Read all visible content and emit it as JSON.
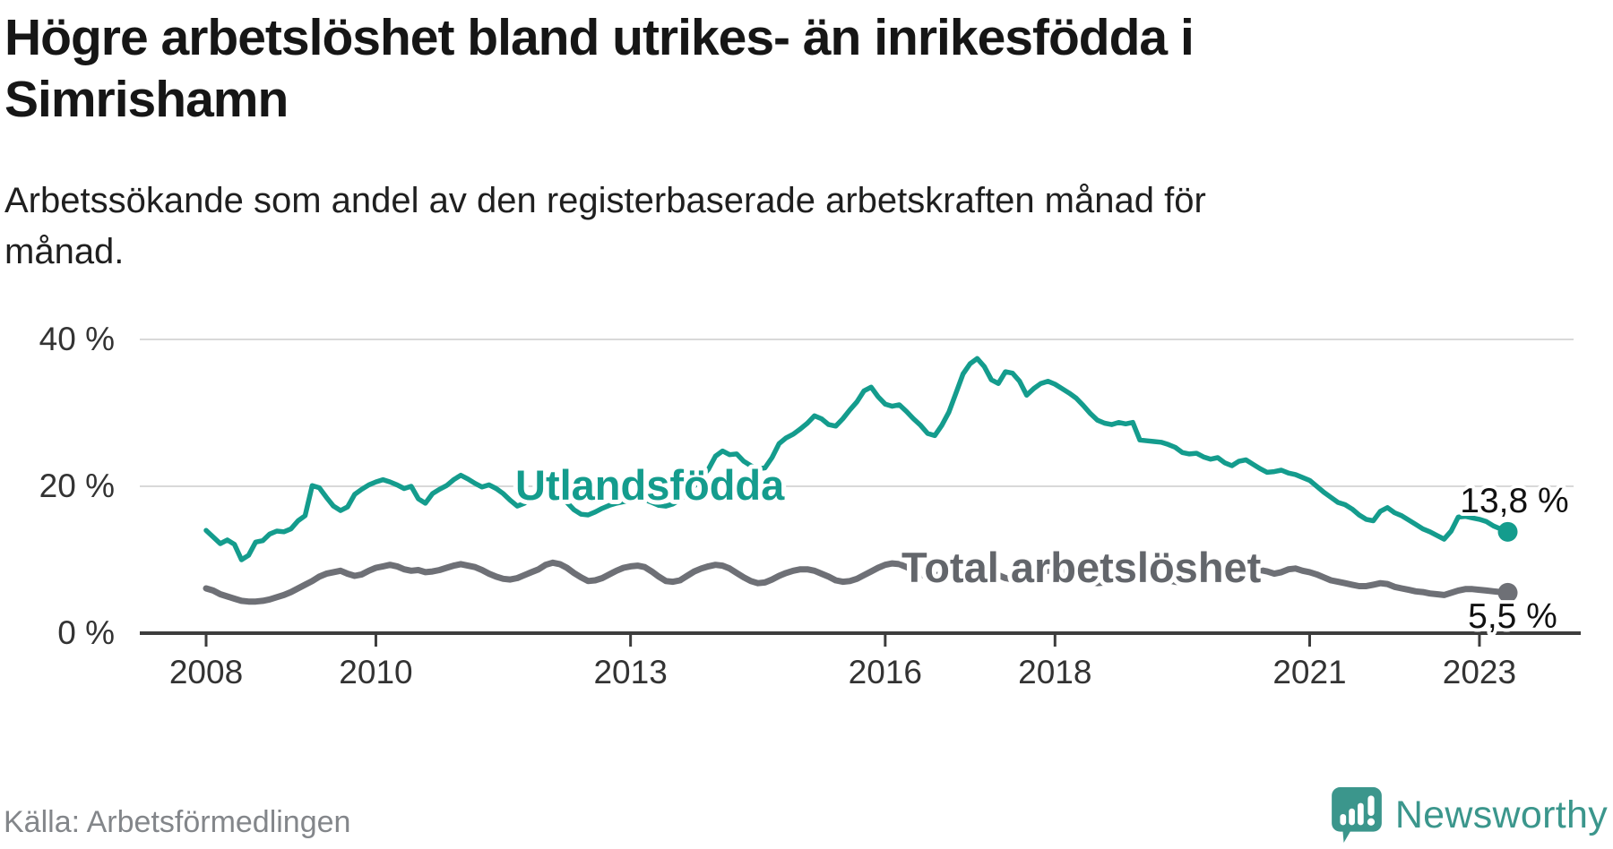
{
  "header": {
    "title_lines": [
      "Högre arbetslöshet bland utrikes- än inrikesfödda i",
      "Simrishamn"
    ],
    "subtitle_lines": [
      "Arbetssökande som andel av den registerbaserade arbetskraften månad för",
      "månad."
    ]
  },
  "footer": {
    "source": "Källa: Arbetsförmedlingen",
    "brand": "Newsworthy",
    "brand_color": "#3b968c"
  },
  "chart_data": {
    "type": "line",
    "title": "Högre arbetslöshet bland utrikes- än inrikesfödda i Simrishamn",
    "subtitle": "Arbetssökande som andel av den registerbaserade arbetskraften månad för månad.",
    "unit": "%",
    "frequency": "monthly",
    "start_month": "2008-01",
    "end_month": "2023-05",
    "ylim": [
      0,
      43
    ],
    "grid": "horizontal",
    "legend_position": "inline-labels",
    "y_ticks": [
      {
        "value": 0,
        "label": "0 %"
      },
      {
        "value": 20,
        "label": "20 %"
      },
      {
        "value": 40,
        "label": "40 %"
      }
    ],
    "x_ticks": [
      {
        "year": 2008,
        "label": "2008"
      },
      {
        "year": 2010,
        "label": "2010"
      },
      {
        "year": 2013,
        "label": "2013"
      },
      {
        "year": 2016,
        "label": "2016"
      },
      {
        "year": 2018,
        "label": "2018"
      },
      {
        "year": 2021,
        "label": "2021"
      },
      {
        "year": 2023,
        "label": "2023"
      }
    ],
    "colors": {
      "grid": "#d9d9d9",
      "axis": "#3d3d3d",
      "tick_text": "#333333",
      "end_label_text": "#111111"
    },
    "series": [
      {
        "name": "Utlandsfödda",
        "color": "#149c8d",
        "label_color": "#149c8d",
        "end_label": "13,8 %",
        "end_value": 13.8,
        "values": [
          14,
          13.1,
          12.2,
          12.7,
          12.1,
          10,
          10.6,
          12.4,
          12.6,
          13.5,
          13.9,
          13.8,
          14.2,
          15.3,
          16,
          20.1,
          19.8,
          18.5,
          17.3,
          16.7,
          17.2,
          18.9,
          19.6,
          20.2,
          20.6,
          20.9,
          20.6,
          20.2,
          19.7,
          20,
          18.3,
          17.7,
          19,
          19.6,
          20.1,
          20.9,
          21.5,
          21,
          20.4,
          19.9,
          20.2,
          19.7,
          19,
          18.1,
          17.3,
          17.7,
          18.4,
          19,
          19.4,
          19.7,
          18.8,
          17.8,
          16.8,
          16.2,
          16.1,
          16.5,
          17,
          17.4,
          17.7,
          17.9,
          18,
          18.4,
          18.2,
          17.8,
          17.4,
          17.3,
          17.6,
          18.2,
          19,
          20,
          21.2,
          22.3,
          24.1,
          24.8,
          24.3,
          24.4,
          23.4,
          22.8,
          22.4,
          22.5,
          23.9,
          25.8,
          26.6,
          27.1,
          27.8,
          28.6,
          29.6,
          29.2,
          28.4,
          28.2,
          29.2,
          30.4,
          31.5,
          33,
          33.5,
          32.2,
          31.2,
          30.9,
          31.1,
          30.2,
          29.2,
          28.3,
          27.2,
          26.9,
          28.3,
          30.1,
          32.7,
          35.3,
          36.7,
          37.4,
          36.3,
          34.5,
          34,
          35.6,
          35.4,
          34.3,
          32.4,
          33.3,
          34,
          34.3,
          33.9,
          33.3,
          32.7,
          32,
          31,
          29.9,
          29,
          28.6,
          28.4,
          28.7,
          28.5,
          28.7,
          26.3,
          26.2,
          26.1,
          26,
          25.7,
          25.3,
          24.6,
          24.4,
          24.5,
          24,
          23.7,
          23.9,
          23.2,
          22.8,
          23.4,
          23.6,
          23,
          22.4,
          21.9,
          22,
          22.2,
          21.8,
          21.6,
          21.2,
          20.8,
          20,
          19.2,
          18.5,
          17.8,
          17.5,
          16.9,
          16.1,
          15.5,
          15.3,
          16.6,
          17.1,
          16.4,
          16,
          15.4,
          14.8,
          14.2,
          13.8,
          13.3,
          12.8,
          13.9,
          15.8,
          15.9,
          15.7,
          15.5,
          15.2,
          14.6,
          14.2,
          13.8
        ]
      },
      {
        "name": "Total arbetslöshet",
        "color": "#6e7076",
        "label_color": "#63666b",
        "end_label": "5,5 %",
        "end_value": 5.5,
        "values": [
          6.1,
          5.8,
          5.3,
          5,
          4.7,
          4.4,
          4.3,
          4.3,
          4.4,
          4.6,
          4.9,
          5.2,
          5.6,
          6.1,
          6.6,
          7.1,
          7.7,
          8.1,
          8.3,
          8.5,
          8.1,
          7.8,
          8,
          8.5,
          8.9,
          9.1,
          9.3,
          9.1,
          8.7,
          8.5,
          8.6,
          8.3,
          8.4,
          8.6,
          8.9,
          9.2,
          9.4,
          9.2,
          9,
          8.6,
          8.1,
          7.7,
          7.4,
          7.3,
          7.5,
          7.9,
          8.3,
          8.7,
          9.3,
          9.6,
          9.4,
          8.9,
          8.2,
          7.6,
          7.1,
          7.2,
          7.5,
          8,
          8.5,
          8.9,
          9.1,
          9.2,
          9,
          8.4,
          7.7,
          7.1,
          7,
          7.2,
          7.8,
          8.4,
          8.8,
          9.1,
          9.3,
          9.2,
          8.8,
          8.2,
          7.6,
          7.1,
          6.8,
          6.9,
          7.3,
          7.8,
          8.2,
          8.5,
          8.7,
          8.7,
          8.5,
          8.1,
          7.7,
          7.2,
          7,
          7.1,
          7.4,
          7.9,
          8.4,
          8.9,
          9.3,
          9.5,
          9.4,
          9,
          8.5,
          8,
          7.7,
          7.8,
          8.1,
          8.5,
          8.8,
          9.1,
          9.2,
          9.1,
          8.8,
          8.4,
          7.9,
          7.5,
          7.3,
          7.4,
          7.7,
          8,
          8.3,
          8.5,
          8.6,
          8.5,
          8.2,
          7.8,
          7.4,
          7,
          6.8,
          6.9,
          7.2,
          7.5,
          7.8,
          8,
          8.1,
          8,
          7.8,
          7.5,
          7.2,
          7,
          6.9,
          7,
          7.2,
          7.4,
          7.7,
          7.9,
          8,
          8.2,
          8.6,
          9,
          8.9,
          8.6,
          8.4,
          8.1,
          8.3,
          8.7,
          8.8,
          8.5,
          8.3,
          8,
          7.6,
          7.2,
          7,
          6.8,
          6.6,
          6.4,
          6.4,
          6.6,
          6.8,
          6.7,
          6.3,
          6.1,
          5.9,
          5.7,
          5.6,
          5.4,
          5.3,
          5.2,
          5.5,
          5.8,
          6,
          6,
          5.9,
          5.8,
          5.7,
          5.6,
          5.5
        ]
      }
    ]
  }
}
